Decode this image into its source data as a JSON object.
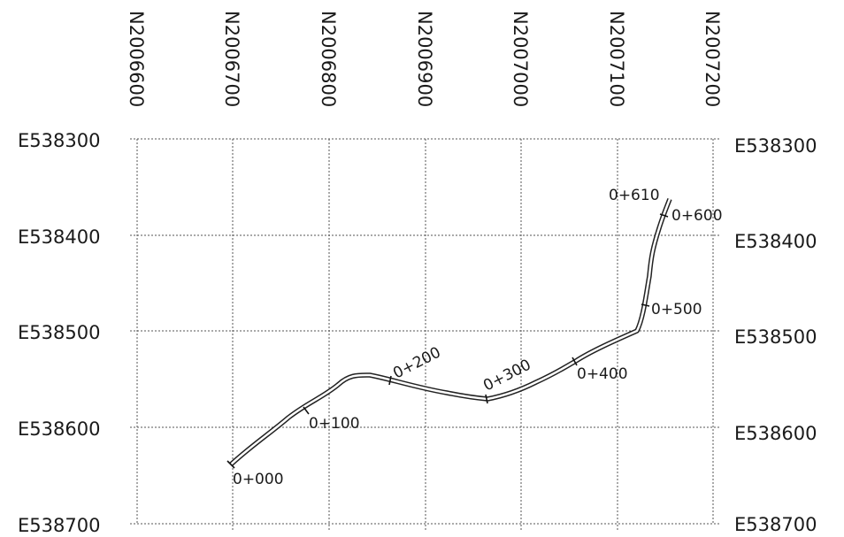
{
  "northing_labels": [
    "N2006600",
    "N2006700",
    "N2006800",
    "N2006900",
    "N2007000",
    "N2007100",
    "N2007200"
  ],
  "easting_labels": [
    "E538300",
    "E538400",
    "E538500",
    "E538600",
    "E538700"
  ],
  "stations": [
    {
      "label": "0+000"
    },
    {
      "label": "0+100"
    },
    {
      "label": "0+200"
    },
    {
      "label": "0+300"
    },
    {
      "label": "0+400"
    },
    {
      "label": "0+500"
    },
    {
      "label": "0+600"
    },
    {
      "label": "0+610"
    }
  ],
  "colors": {
    "line": "#222222",
    "grid": "#555555",
    "background": "#ffffff"
  }
}
